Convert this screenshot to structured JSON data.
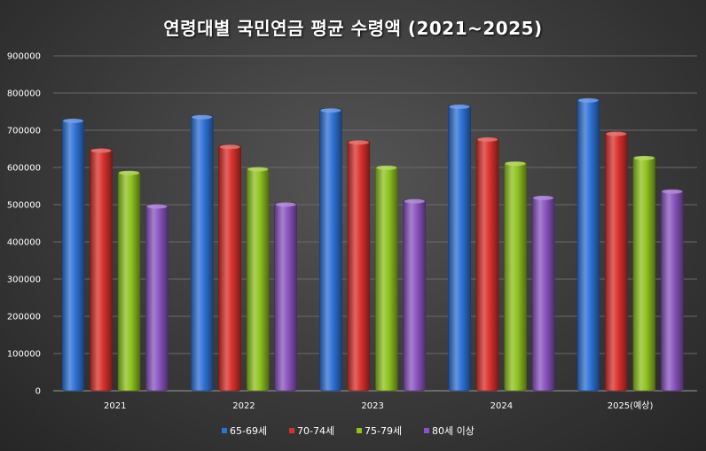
{
  "chart_data": {
    "type": "bar",
    "title": "연령대별 국민연금 평균 수령액 (2021~2025)",
    "categories": [
      "2021",
      "2022",
      "2023",
      "2024",
      "2025(예상)"
    ],
    "series": [
      {
        "name": "65-69세",
        "color": "#2f72d6",
        "values": [
          730000,
          740000,
          758000,
          768000,
          785000
        ]
      },
      {
        "name": "70-74세",
        "color": "#d9312c",
        "values": [
          650000,
          660000,
          672000,
          680000,
          695000
        ]
      },
      {
        "name": "75-79세",
        "color": "#8fc21f",
        "values": [
          590000,
          600000,
          604000,
          615000,
          630000
        ]
      },
      {
        "name": "80세 이상",
        "color": "#8a55c0",
        "values": [
          500000,
          505000,
          514000,
          523000,
          540000
        ]
      }
    ],
    "ylim": [
      0,
      900000
    ],
    "yticks": [
      "0",
      "100000",
      "200000",
      "300000",
      "400000",
      "500000",
      "600000",
      "700000",
      "800000",
      "900000"
    ],
    "grid": true,
    "legend_position": "bottom"
  }
}
